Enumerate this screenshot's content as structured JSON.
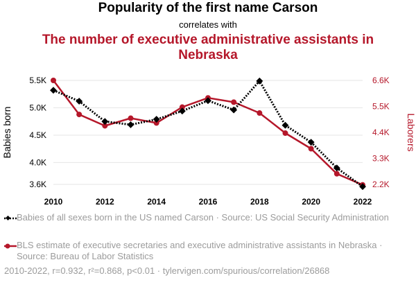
{
  "header": {
    "title": "Popularity of the first name Carson",
    "subtitle": "correlates with",
    "title2": "The number of executive administrative assistants in Nebraska"
  },
  "chart_data": {
    "type": "line",
    "x": [
      2010,
      2011,
      2012,
      2013,
      2014,
      2015,
      2016,
      2017,
      2018,
      2019,
      2020,
      2021,
      2022
    ],
    "x_ticks": [
      2010,
      2012,
      2014,
      2016,
      2018,
      2020,
      2022
    ],
    "x_tick_labels": [
      "2010",
      "2012",
      "2014",
      "2016",
      "2018",
      "2020",
      "2022"
    ],
    "xlim": [
      2010,
      2022
    ],
    "series": [
      {
        "name": "Babies of all sexes born in the US named Carson · Source: US Social Security Administration",
        "axis": "left",
        "color": "#000000",
        "style": "dotted",
        "marker": "diamond",
        "values": [
          5320,
          5120,
          4750,
          4690,
          4790,
          4940,
          5130,
          4960,
          5490,
          4680,
          4370,
          3900,
          3560
        ]
      },
      {
        "name": "BLS estimate of executive secretaries and executive administrative assistants in Nebraska · Source: Bureau of Labor Statistics",
        "axis": "right",
        "color": "#b5172a",
        "style": "solid",
        "marker": "circle",
        "values": [
          6600,
          5160,
          4680,
          5000,
          4800,
          5470,
          5860,
          5680,
          5220,
          4370,
          3710,
          2650,
          2180
        ]
      }
    ],
    "left_axis": {
      "label": "Babies born",
      "ylim": [
        3600,
        5500
      ],
      "ticks": [
        3600,
        4000,
        4500,
        5000,
        5500
      ],
      "tick_labels": [
        "3.6K",
        "4.0K",
        "4.5K",
        "5.0K",
        "5.5K"
      ]
    },
    "right_axis": {
      "label": "Laborers",
      "ylim": [
        2200,
        6600
      ],
      "ticks": [
        2200,
        3300,
        4400,
        5500,
        6600
      ],
      "tick_labels": [
        "2.2K",
        "3.3K",
        "4.4K",
        "5.5K",
        "6.6K"
      ]
    }
  },
  "legend": {
    "items": [
      {
        "label": "Babies of all sexes born in the US named Carson · Source: US Social Security Administration",
        "color": "#000000"
      },
      {
        "label": "BLS estimate of executive secretaries and executive administrative assistants in Nebraska · Source: Bureau of Labor Statistics",
        "color": "#b5172a"
      }
    ]
  },
  "footer": {
    "text": "2010-2022, r=0.932, r²=0.868, p<0.01 · tylervigen.com/spurious/correlation/26868"
  }
}
